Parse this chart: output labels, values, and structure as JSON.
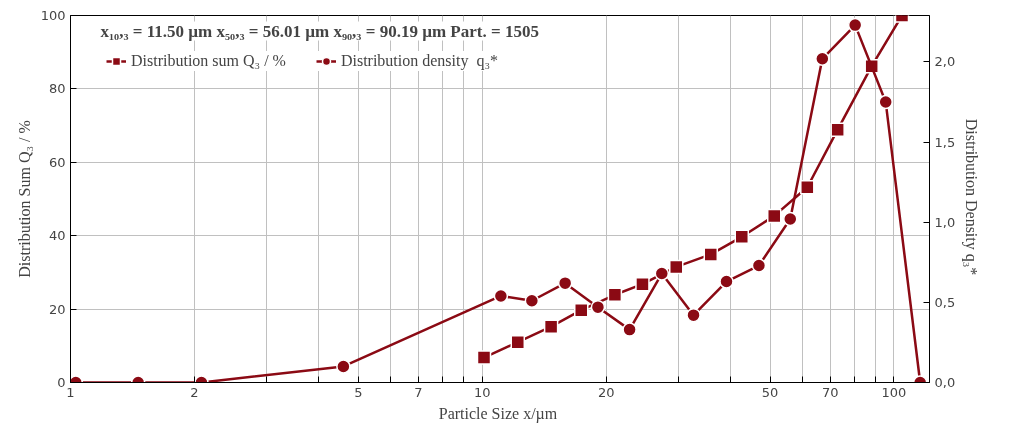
{
  "chart_data": {
    "type": "line",
    "xlabel": "Particle Size  x/µm",
    "ylabel": "Distribution Sum Q₃ / %",
    "y2label": "Distribution Density  q₃*",
    "annotations": [
      "x₁₀,₃ = 11.50 µm  x₅₀,₃ = 56.01 µm      x₉₀,₃ = 90.19 µm     Part. = 1505"
    ],
    "log": "x",
    "grid": true,
    "legend": "top left",
    "line_style": "solid",
    "xlim": [
      1,
      122
    ],
    "xticks": [
      1,
      2,
      {
        "value": 3,
        "label": null
      },
      {
        "value": 4,
        "label": null
      },
      5,
      {
        "value": 6,
        "label": null
      },
      7,
      {
        "value": 8,
        "label": null
      },
      {
        "value": 9,
        "label": null
      },
      10,
      20,
      {
        "value": 30,
        "label": null
      },
      {
        "value": 40,
        "label": null
      },
      50,
      {
        "value": 60,
        "label": null
      },
      70,
      {
        "value": 80,
        "label": null
      },
      {
        "value": 90,
        "label": null
      },
      100
    ],
    "ylim": [
      0,
      100
    ],
    "yticks": [
      0,
      20,
      40,
      60,
      80,
      100
    ],
    "y2lim": [
      0,
      2.29
    ],
    "y2ticks": [
      {
        "value": 0,
        "label": "0,0"
      },
      {
        "value": 0.5,
        "label": "0,5"
      },
      {
        "value": 1,
        "label": "1,0"
      },
      {
        "value": 1.5,
        "label": "1,5"
      },
      {
        "value": 2,
        "label": "2,0"
      }
    ],
    "series": [
      {
        "name": "Distribution sum Q₃ / %",
        "color": "#8b0a14",
        "marker": "square",
        "x": [
          10.1,
          12.2,
          14.7,
          17.4,
          21.0,
          24.5,
          29.6,
          35.9,
          42.7,
          51.2,
          61.6,
          73.0,
          88.3,
          104.6
        ],
        "values": [
          6.8,
          11.0,
          15.2,
          19.7,
          23.9,
          26.8,
          31.5,
          34.9,
          39.7,
          45.4,
          53.2,
          68.9,
          86.2,
          100
        ]
      },
      {
        "name": "Distribution density  q₃*",
        "color": "#8b0a14",
        "marker": "circle",
        "axis": "y2",
        "x": [
          1.03,
          1.46,
          2.08,
          4.6,
          11.1,
          13.2,
          15.9,
          19.1,
          22.8,
          27.3,
          32.6,
          39.2,
          47.0,
          56.0,
          67.0,
          80.5,
          95.5,
          115.8
        ],
        "values": [
          0,
          0,
          0,
          0.1,
          0.54,
          0.51,
          0.62,
          0.47,
          0.33,
          0.68,
          0.42,
          0.63,
          0.73,
          1.02,
          2.02,
          2.23,
          1.75,
          0
        ]
      }
    ]
  }
}
